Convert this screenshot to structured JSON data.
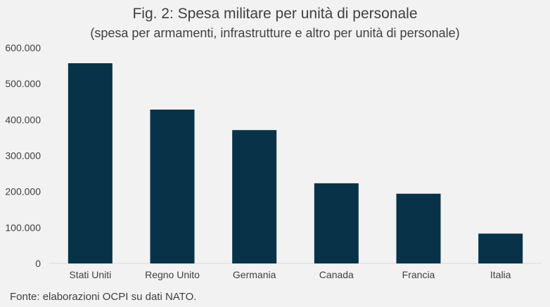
{
  "chart_data": {
    "type": "bar",
    "title": "Fig. 2: Spesa militare per unità di personale",
    "subtitle": "(spesa per armamenti, infrastrutture e altro per unità di personale)",
    "categories": [
      "Stati Uniti",
      "Regno Unito",
      "Germania",
      "Canada",
      "Francia",
      "Italia"
    ],
    "values": [
      557000,
      428000,
      371000,
      223000,
      194000,
      83000
    ],
    "ylim": [
      0,
      600000
    ],
    "yticks": [
      0,
      100000,
      200000,
      300000,
      400000,
      500000,
      600000
    ],
    "ytick_labels": [
      "0",
      "100.000",
      "200.000",
      "300.000",
      "400.000",
      "500.000",
      "600.000"
    ],
    "xlabel": "",
    "ylabel": "",
    "grid": false,
    "bar_color": "#083248",
    "source": "Fonte: elaborazioni OCPI su dati NATO."
  }
}
